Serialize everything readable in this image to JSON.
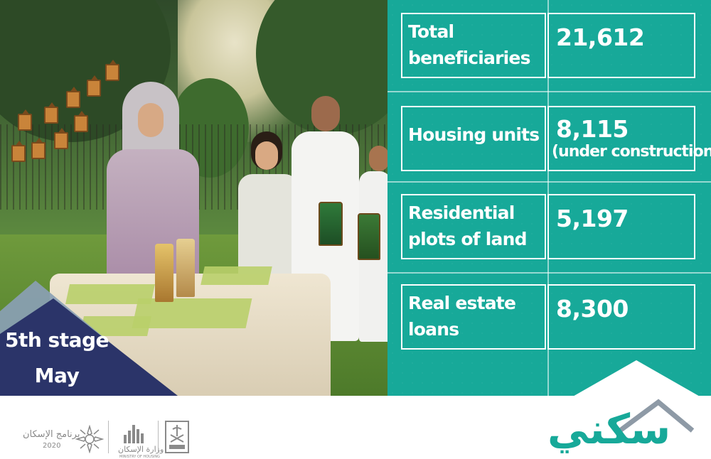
{
  "stage": {
    "line1": "5th stage",
    "line2": "May"
  },
  "stats": [
    {
      "label_lines": [
        "Total",
        "beneficiaries"
      ],
      "value": "21,612",
      "note": ""
    },
    {
      "label_lines": [
        "Housing units"
      ],
      "value": "8,115",
      "note": "(under construction"
    },
    {
      "label_lines": [
        "Residential",
        "plots of land"
      ],
      "value": "5,197",
      "note": ""
    },
    {
      "label_lines": [
        "Real estate",
        "loans"
      ],
      "value": "8,300",
      "note": ""
    }
  ],
  "footer": {
    "brand_logo_text": "سكني",
    "program_name": "برنامج الإسكان",
    "program_year": "2020",
    "ministry_name": "وزارة الإسكان",
    "ministry_name_en": "MINISTRY OF HOUSING"
  },
  "colors": {
    "teal": "#17a999",
    "navy": "#2b3469",
    "gray_triangle": "#8aa0b4"
  },
  "icons": {
    "house_roof": "house-roof-icon",
    "vision_logo": "vision-2030-icon",
    "ministry_logo": "ministry-building-icon",
    "emblem": "saudi-emblem-icon"
  }
}
